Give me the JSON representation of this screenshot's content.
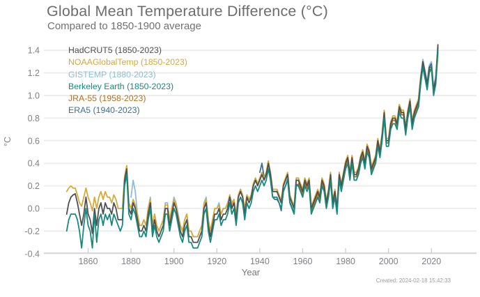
{
  "header": {
    "title": "Global Mean Temperature Difference (°C)",
    "subtitle": "Compared to 1850-1900 average"
  },
  "footer": {
    "created": "Created: 2024-02-18 15:42:33"
  },
  "chart_data": {
    "type": "line",
    "title": "Global Mean Temperature Difference (°C)",
    "subtitle": "Compared to 1850-1900 average",
    "xlabel": "Year",
    "ylabel": "°C",
    "xlim": [
      1847,
      2026
    ],
    "ylim": [
      -0.4,
      1.5
    ],
    "grid": "horizontal",
    "grid_color": "#ededed",
    "axis_color": "#d9d9d9",
    "legend_position": "top-left",
    "x_ticks": [
      1860,
      1880,
      1900,
      1920,
      1940,
      1960,
      1980,
      2000,
      2020
    ],
    "x_tick_labels": [
      "1860",
      "1880",
      "1900",
      "1920",
      "1940",
      "1960",
      "1980",
      "2000",
      "2020"
    ],
    "y_ticks": [
      -0.4,
      -0.2,
      0.0,
      0.2,
      0.4,
      0.6,
      0.8,
      1.0,
      1.2,
      1.4
    ],
    "y_tick_labels": [
      "-0.4",
      "-0.2",
      "0.0",
      "0.2",
      "0.4",
      "0.6",
      "0.8",
      "1.0",
      "1.2",
      "1.4"
    ],
    "series": [
      {
        "name": "HadCRUT5 (1850-2023)",
        "color": "#4f4f52",
        "start_year": 1850,
        "end_year": 2023,
        "values": [
          -0.05,
          0.05,
          0.1,
          0.12,
          0.13,
          0.05,
          -0.05,
          -0.15,
          -0.05,
          0.1,
          -0.05,
          -0.1,
          -0.22,
          0.0,
          -0.15,
          0.0,
          0.05,
          -0.05,
          0.05,
          0.0,
          0.0,
          -0.05,
          0.05,
          0.0,
          -0.1,
          -0.1,
          -0.1,
          0.25,
          0.35,
          0.0,
          -0.05,
          0.05,
          0.0,
          -0.1,
          -0.2,
          -0.2,
          -0.15,
          -0.2,
          -0.05,
          0.05,
          -0.2,
          -0.1,
          -0.2,
          -0.25,
          -0.2,
          -0.15,
          0.0,
          0.0,
          -0.15,
          -0.05,
          0.05,
          0.0,
          -0.1,
          -0.2,
          -0.25,
          -0.15,
          -0.1,
          -0.25,
          -0.25,
          -0.3,
          -0.3,
          -0.3,
          -0.25,
          -0.2,
          0.0,
          0.05,
          -0.15,
          -0.25,
          -0.15,
          -0.05,
          -0.05,
          0.0,
          -0.1,
          -0.05,
          -0.05,
          0.0,
          0.1,
          0.0,
          0.05,
          -0.1,
          0.1,
          0.15,
          0.1,
          -0.05,
          0.1,
          0.05,
          0.1,
          0.2,
          0.25,
          0.2,
          0.25,
          0.3,
          0.25,
          0.3,
          0.4,
          0.3,
          0.15,
          0.15,
          0.15,
          0.1,
          0.05,
          0.2,
          0.25,
          0.3,
          0.1,
          0.05,
          0.0,
          0.25,
          0.25,
          0.2,
          0.15,
          0.25,
          0.2,
          0.25,
          0.0,
          0.05,
          0.1,
          0.15,
          0.1,
          0.25,
          0.2,
          0.05,
          0.15,
          0.3,
          0.05,
          0.15,
          0.0,
          0.3,
          0.2,
          0.3,
          0.4,
          0.45,
          0.3,
          0.45,
          0.3,
          0.3,
          0.35,
          0.45,
          0.5,
          0.4,
          0.55,
          0.5,
          0.35,
          0.4,
          0.45,
          0.6,
          0.5,
          0.65,
          0.85,
          0.6,
          0.6,
          0.75,
          0.8,
          0.8,
          0.75,
          0.9,
          0.85,
          0.85,
          0.7,
          0.85,
          0.95,
          0.75,
          0.85,
          0.9,
          0.95,
          1.15,
          1.3,
          1.2,
          1.1,
          1.25,
          1.25,
          1.05,
          1.15,
          1.45
        ]
      },
      {
        "name": "NOAAGlobalTemp (1850-2023)",
        "color": "#d5a93c",
        "start_year": 1850,
        "end_year": 2023,
        "values": [
          0.15,
          0.18,
          0.2,
          0.18,
          0.18,
          0.12,
          0.05,
          0.02,
          0.1,
          0.18,
          0.1,
          0.05,
          -0.02,
          0.1,
          0.0,
          0.1,
          0.15,
          0.08,
          0.15,
          0.1,
          0.1,
          0.05,
          0.12,
          0.08,
          0.0,
          0.0,
          0.0,
          0.28,
          0.38,
          0.05,
          0.0,
          0.08,
          0.03,
          -0.05,
          -0.15,
          -0.15,
          -0.1,
          -0.15,
          0.0,
          0.08,
          -0.15,
          -0.05,
          -0.15,
          -0.2,
          -0.15,
          -0.1,
          0.03,
          0.03,
          -0.1,
          0.0,
          0.08,
          0.03,
          -0.07,
          -0.15,
          -0.2,
          -0.1,
          -0.05,
          -0.2,
          -0.2,
          -0.25,
          -0.25,
          -0.25,
          -0.2,
          -0.15,
          0.03,
          0.08,
          -0.1,
          -0.2,
          -0.1,
          0.0,
          0.0,
          0.03,
          -0.05,
          0.0,
          0.0,
          0.03,
          0.12,
          0.03,
          0.08,
          -0.05,
          0.12,
          0.17,
          0.12,
          0.0,
          0.12,
          0.08,
          0.12,
          0.22,
          0.27,
          0.22,
          0.27,
          0.32,
          0.27,
          0.32,
          0.42,
          0.32,
          0.17,
          0.17,
          0.17,
          0.12,
          0.07,
          0.22,
          0.27,
          0.32,
          0.12,
          0.07,
          0.02,
          0.27,
          0.27,
          0.22,
          0.17,
          0.27,
          0.22,
          0.27,
          0.02,
          0.07,
          0.12,
          0.17,
          0.12,
          0.27,
          0.22,
          0.07,
          0.17,
          0.32,
          0.07,
          0.17,
          0.02,
          0.32,
          0.22,
          0.32,
          0.42,
          0.47,
          0.32,
          0.47,
          0.32,
          0.32,
          0.37,
          0.47,
          0.52,
          0.42,
          0.57,
          0.52,
          0.37,
          0.42,
          0.47,
          0.62,
          0.52,
          0.67,
          0.87,
          0.62,
          0.62,
          0.77,
          0.82,
          0.82,
          0.77,
          0.92,
          0.87,
          0.87,
          0.72,
          0.87,
          0.97,
          0.77,
          0.87,
          0.92,
          0.97,
          1.17,
          1.27,
          1.17,
          1.07,
          1.22,
          1.22,
          1.02,
          1.12,
          1.35
        ]
      },
      {
        "name": "GISTEMP (1880-2023)",
        "color": "#8fbdd3",
        "start_year": 1880,
        "end_year": 2023,
        "values": [
          0.1,
          0.25,
          0.15,
          -0.05,
          -0.15,
          -0.15,
          -0.1,
          -0.15,
          0.0,
          0.1,
          -0.15,
          -0.05,
          -0.15,
          -0.2,
          -0.15,
          -0.1,
          0.05,
          0.05,
          -0.1,
          0.0,
          0.1,
          0.05,
          -0.05,
          -0.15,
          -0.2,
          -0.1,
          -0.05,
          -0.2,
          -0.2,
          -0.25,
          -0.25,
          -0.25,
          -0.2,
          -0.15,
          0.05,
          0.1,
          -0.1,
          -0.2,
          -0.1,
          0.0,
          0.0,
          0.05,
          -0.05,
          0.0,
          0.0,
          0.05,
          0.12,
          0.05,
          0.08,
          -0.05,
          0.12,
          0.17,
          0.12,
          0.0,
          0.12,
          0.08,
          0.12,
          0.22,
          0.27,
          0.22,
          0.27,
          0.32,
          0.25,
          0.3,
          0.4,
          0.3,
          0.15,
          0.15,
          0.15,
          0.1,
          0.05,
          0.2,
          0.25,
          0.3,
          0.1,
          0.05,
          0.0,
          0.25,
          0.25,
          0.2,
          0.15,
          0.25,
          0.2,
          0.25,
          0.0,
          0.05,
          0.1,
          0.15,
          0.1,
          0.25,
          0.2,
          0.05,
          0.15,
          0.3,
          0.05,
          0.15,
          0.0,
          0.3,
          0.2,
          0.3,
          0.4,
          0.45,
          0.3,
          0.45,
          0.3,
          0.3,
          0.35,
          0.45,
          0.5,
          0.4,
          0.55,
          0.5,
          0.35,
          0.4,
          0.45,
          0.6,
          0.5,
          0.65,
          0.85,
          0.6,
          0.6,
          0.75,
          0.8,
          0.8,
          0.75,
          0.92,
          0.87,
          0.87,
          0.72,
          0.87,
          0.97,
          0.77,
          0.87,
          0.92,
          0.97,
          1.17,
          1.32,
          1.22,
          1.12,
          1.27,
          1.3,
          1.07,
          1.17,
          1.42
        ]
      },
      {
        "name": "Berkeley Earth (1850-2023)",
        "color": "#18897c",
        "start_year": 1850,
        "end_year": 2023,
        "values": [
          -0.2,
          -0.1,
          -0.05,
          -0.05,
          -0.05,
          -0.1,
          -0.2,
          -0.35,
          -0.15,
          0.0,
          -0.15,
          -0.2,
          -0.35,
          -0.05,
          -0.3,
          -0.1,
          -0.05,
          -0.15,
          -0.05,
          -0.1,
          -0.05,
          -0.15,
          -0.05,
          -0.1,
          -0.15,
          -0.2,
          -0.15,
          0.2,
          0.3,
          -0.05,
          -0.1,
          0.0,
          -0.05,
          -0.15,
          -0.25,
          -0.25,
          -0.2,
          -0.25,
          -0.1,
          0.0,
          -0.25,
          -0.15,
          -0.25,
          -0.3,
          -0.25,
          -0.2,
          -0.05,
          -0.05,
          -0.2,
          -0.1,
          0.0,
          -0.05,
          -0.15,
          -0.25,
          -0.3,
          -0.2,
          -0.15,
          -0.3,
          -0.3,
          -0.35,
          -0.35,
          -0.35,
          -0.3,
          -0.25,
          -0.05,
          0.0,
          -0.2,
          -0.3,
          -0.2,
          -0.1,
          -0.1,
          -0.05,
          -0.15,
          -0.1,
          -0.1,
          -0.05,
          0.05,
          -0.05,
          0.0,
          -0.15,
          0.05,
          0.1,
          0.05,
          -0.1,
          0.05,
          0.0,
          0.05,
          0.15,
          0.2,
          0.15,
          0.2,
          0.25,
          0.2,
          0.25,
          0.35,
          0.25,
          0.1,
          0.1,
          0.1,
          0.05,
          0.0,
          0.15,
          0.2,
          0.25,
          0.05,
          0.0,
          -0.05,
          0.2,
          0.2,
          0.15,
          0.1,
          0.2,
          0.15,
          0.2,
          -0.05,
          0.0,
          0.05,
          0.1,
          0.05,
          0.2,
          0.15,
          0.0,
          0.1,
          0.25,
          0.0,
          0.1,
          -0.05,
          0.25,
          0.15,
          0.25,
          0.35,
          0.4,
          0.25,
          0.4,
          0.25,
          0.25,
          0.3,
          0.4,
          0.45,
          0.35,
          0.5,
          0.45,
          0.3,
          0.35,
          0.4,
          0.55,
          0.45,
          0.6,
          0.8,
          0.55,
          0.55,
          0.7,
          0.75,
          0.75,
          0.7,
          0.85,
          0.8,
          0.8,
          0.65,
          0.8,
          0.9,
          0.7,
          0.8,
          0.85,
          0.9,
          1.1,
          1.25,
          1.15,
          1.05,
          1.2,
          1.25,
          1.0,
          1.1,
          1.4
        ]
      },
      {
        "name": "JRA-55 (1958-2023)",
        "color": "#b56e1e",
        "start_year": 1958,
        "end_year": 2023,
        "values": [
          0.22,
          0.18,
          0.12,
          0.22,
          0.18,
          0.22,
          -0.02,
          0.03,
          0.08,
          0.13,
          0.08,
          0.23,
          0.18,
          0.03,
          0.13,
          0.28,
          0.03,
          0.13,
          -0.02,
          0.28,
          0.18,
          0.28,
          0.38,
          0.43,
          0.28,
          0.43,
          0.28,
          0.28,
          0.33,
          0.43,
          0.48,
          0.38,
          0.53,
          0.48,
          0.33,
          0.38,
          0.43,
          0.58,
          0.48,
          0.63,
          0.83,
          0.58,
          0.58,
          0.73,
          0.78,
          0.78,
          0.73,
          0.88,
          0.83,
          0.83,
          0.68,
          0.83,
          0.93,
          0.73,
          0.83,
          0.88,
          0.93,
          1.13,
          1.28,
          1.18,
          1.08,
          1.23,
          1.23,
          1.03,
          1.13,
          1.38
        ]
      },
      {
        "name": "ERA5 (1940-2023)",
        "color": "#3e6e8e",
        "start_year": 1940,
        "end_year": 2023,
        "values": [
          0.32,
          0.4,
          0.28,
          0.3,
          0.42,
          0.25,
          0.1,
          0.08,
          0.08,
          0.05,
          -0.02,
          0.15,
          0.2,
          0.26,
          0.06,
          0.01,
          -0.04,
          0.21,
          0.21,
          0.16,
          0.13,
          0.23,
          0.18,
          0.23,
          -0.02,
          0.03,
          0.08,
          0.13,
          0.08,
          0.23,
          0.18,
          0.03,
          0.13,
          0.28,
          0.03,
          0.13,
          -0.02,
          0.28,
          0.18,
          0.28,
          0.38,
          0.43,
          0.28,
          0.43,
          0.28,
          0.28,
          0.33,
          0.43,
          0.48,
          0.38,
          0.53,
          0.48,
          0.33,
          0.38,
          0.43,
          0.58,
          0.48,
          0.63,
          0.83,
          0.58,
          0.58,
          0.73,
          0.78,
          0.78,
          0.73,
          0.88,
          0.83,
          0.83,
          0.68,
          0.83,
          0.93,
          0.73,
          0.83,
          0.88,
          0.93,
          1.13,
          1.3,
          1.2,
          1.1,
          1.25,
          1.28,
          1.05,
          1.15,
          1.43
        ]
      }
    ]
  }
}
